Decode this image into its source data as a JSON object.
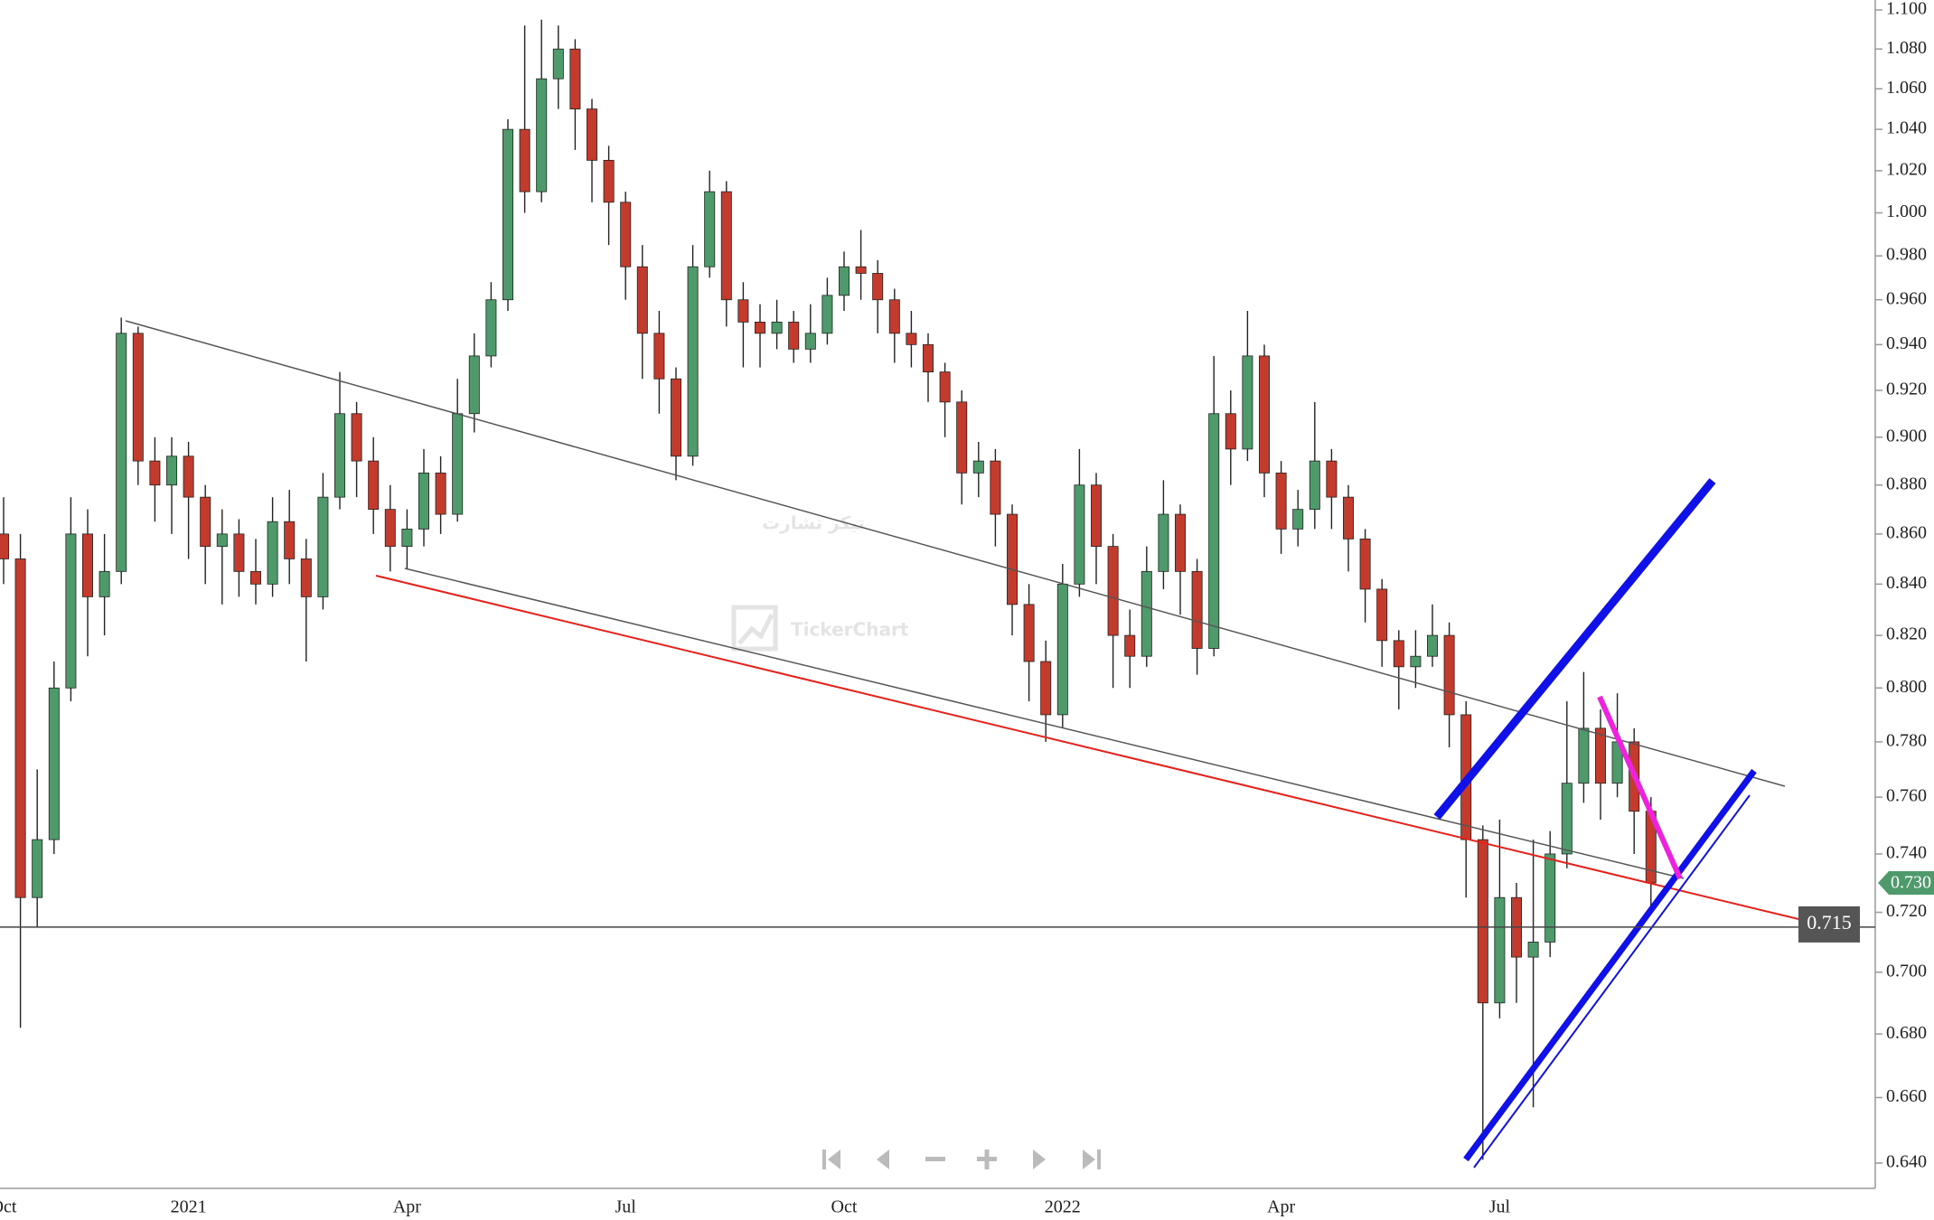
{
  "chart_data": {
    "type": "candlestick",
    "log": true,
    "up_color": "#4e9a6b",
    "down_color": "#c23b2c",
    "categories": [
      "Oct",
      null,
      null,
      null,
      null,
      null,
      null,
      null,
      null,
      null,
      null,
      "2021",
      null,
      null,
      null,
      null,
      null,
      null,
      null,
      null,
      null,
      null,
      null,
      null,
      "Apr",
      null,
      null,
      null,
      null,
      null,
      null,
      null,
      null,
      null,
      null,
      null,
      null,
      "Jul",
      null,
      null,
      null,
      null,
      null,
      null,
      null,
      null,
      null,
      null,
      null,
      null,
      "Oct",
      null,
      null,
      null,
      null,
      null,
      null,
      null,
      null,
      null,
      null,
      null,
      null,
      "2022",
      null,
      null,
      null,
      null,
      null,
      null,
      null,
      null,
      null,
      null,
      null,
      null,
      "Apr",
      null,
      null,
      null,
      null,
      null,
      null,
      null,
      null,
      null,
      null,
      null,
      null,
      "Jul",
      null,
      null,
      null,
      null,
      null,
      null,
      null,
      null,
      null
    ],
    "open": [
      0.86,
      0.85,
      0.725,
      0.745,
      0.8,
      0.86,
      0.835,
      0.845,
      0.945,
      0.89,
      0.88,
      0.892,
      0.875,
      0.855,
      0.86,
      0.845,
      0.84,
      0.865,
      0.85,
      0.835,
      0.875,
      0.91,
      0.89,
      0.87,
      0.855,
      0.862,
      0.885,
      0.868,
      0.91,
      0.935,
      0.96,
      1.04,
      1.01,
      1.065,
      1.08,
      1.05,
      1.025,
      1.005,
      0.975,
      0.945,
      0.925,
      0.892,
      0.975,
      1.01,
      0.96,
      0.95,
      0.945,
      0.95,
      0.938,
      0.945,
      0.962,
      0.975,
      0.972,
      0.96,
      0.945,
      0.94,
      0.928,
      0.915,
      0.885,
      0.89,
      0.868,
      0.832,
      0.81,
      0.79,
      0.84,
      0.88,
      0.855,
      0.82,
      0.812,
      0.845,
      0.868,
      0.845,
      0.815,
      0.91,
      0.895,
      0.935,
      0.885,
      0.862,
      0.87,
      0.89,
      0.875,
      0.858,
      0.838,
      0.818,
      0.808,
      0.812,
      0.82,
      0.79,
      0.745,
      0.69,
      0.725,
      0.705,
      0.71,
      0.74,
      0.765,
      0.785,
      0.765,
      0.78,
      0.755
    ],
    "high": [
      0.875,
      0.86,
      0.77,
      0.81,
      0.875,
      0.87,
      0.86,
      0.952,
      0.948,
      0.9,
      0.9,
      0.898,
      0.88,
      0.87,
      0.866,
      0.858,
      0.875,
      0.878,
      0.858,
      0.885,
      0.928,
      0.915,
      0.9,
      0.88,
      0.87,
      0.895,
      0.892,
      0.925,
      0.945,
      0.968,
      1.045,
      1.092,
      1.095,
      1.092,
      1.085,
      1.055,
      1.032,
      1.01,
      0.985,
      0.955,
      0.93,
      0.985,
      1.02,
      1.015,
      0.968,
      0.958,
      0.96,
      0.955,
      0.958,
      0.97,
      0.982,
      0.992,
      0.978,
      0.965,
      0.955,
      0.945,
      0.932,
      0.92,
      0.898,
      0.895,
      0.872,
      0.84,
      0.818,
      0.848,
      0.895,
      0.885,
      0.86,
      0.83,
      0.855,
      0.882,
      0.872,
      0.85,
      0.935,
      0.92,
      0.955,
      0.94,
      0.89,
      0.878,
      0.915,
      0.895,
      0.88,
      0.862,
      0.842,
      0.822,
      0.822,
      0.832,
      0.825,
      0.795,
      0.75,
      0.752,
      0.73,
      0.745,
      0.748,
      0.795,
      0.806,
      0.792,
      0.798,
      0.785,
      0.76
    ],
    "low": [
      0.84,
      0.682,
      0.715,
      0.74,
      0.795,
      0.812,
      0.82,
      0.84,
      0.88,
      0.865,
      0.86,
      0.85,
      0.84,
      0.832,
      0.835,
      0.832,
      0.835,
      0.84,
      0.81,
      0.83,
      0.87,
      0.875,
      0.86,
      0.845,
      0.846,
      0.855,
      0.86,
      0.865,
      0.902,
      0.93,
      0.955,
      1.0,
      1.005,
      1.05,
      1.03,
      1.005,
      0.985,
      0.96,
      0.925,
      0.91,
      0.882,
      0.888,
      0.97,
      0.948,
      0.93,
      0.93,
      0.938,
      0.932,
      0.932,
      0.94,
      0.955,
      0.96,
      0.945,
      0.932,
      0.93,
      0.915,
      0.9,
      0.872,
      0.875,
      0.855,
      0.82,
      0.795,
      0.78,
      0.785,
      0.835,
      0.84,
      0.8,
      0.8,
      0.808,
      0.838,
      0.828,
      0.805,
      0.812,
      0.88,
      0.89,
      0.875,
      0.852,
      0.855,
      0.862,
      0.862,
      0.845,
      0.825,
      0.808,
      0.792,
      0.8,
      0.808,
      0.778,
      0.725,
      0.641,
      0.685,
      0.69,
      0.657,
      0.705,
      0.735,
      0.758,
      0.752,
      0.76,
      0.74,
      0.72
    ],
    "close": [
      0.85,
      0.725,
      0.745,
      0.8,
      0.86,
      0.835,
      0.845,
      0.945,
      0.89,
      0.88,
      0.892,
      0.875,
      0.855,
      0.86,
      0.845,
      0.84,
      0.865,
      0.85,
      0.835,
      0.875,
      0.91,
      0.89,
      0.87,
      0.855,
      0.862,
      0.885,
      0.868,
      0.91,
      0.935,
      0.96,
      1.04,
      1.01,
      1.065,
      1.08,
      1.05,
      1.025,
      1.005,
      0.975,
      0.945,
      0.925,
      0.892,
      0.975,
      1.01,
      0.96,
      0.95,
      0.945,
      0.95,
      0.938,
      0.945,
      0.962,
      0.975,
      0.972,
      0.96,
      0.945,
      0.94,
      0.928,
      0.915,
      0.885,
      0.89,
      0.868,
      0.832,
      0.81,
      0.79,
      0.84,
      0.88,
      0.855,
      0.82,
      0.812,
      0.845,
      0.868,
      0.845,
      0.815,
      0.91,
      0.895,
      0.935,
      0.885,
      0.862,
      0.87,
      0.89,
      0.875,
      0.858,
      0.838,
      0.818,
      0.808,
      0.812,
      0.82,
      0.79,
      0.745,
      0.69,
      0.725,
      0.705,
      0.71,
      0.74,
      0.765,
      0.785,
      0.765,
      0.78,
      0.755,
      0.73
    ],
    "ylim": [
      0.64,
      1.1
    ],
    "yticks": [
      {
        "value": 0.64,
        "label": "0.640"
      },
      {
        "value": 0.66,
        "label": "0.660"
      },
      {
        "value": 0.68,
        "label": "0.680"
      },
      {
        "value": 0.7,
        "label": "0.700"
      },
      {
        "value": 0.72,
        "label": "0.720"
      },
      {
        "value": 0.74,
        "label": "0.740"
      },
      {
        "value": 0.76,
        "label": "0.760"
      },
      {
        "value": 0.78,
        "label": "0.780"
      },
      {
        "value": 0.8,
        "label": "0.800"
      },
      {
        "value": 0.82,
        "label": "0.820"
      },
      {
        "value": 0.84,
        "label": "0.840"
      },
      {
        "value": 0.86,
        "label": "0.860"
      },
      {
        "value": 0.88,
        "label": "0.880"
      },
      {
        "value": 0.9,
        "label": "0.900"
      },
      {
        "value": 0.92,
        "label": "0.920"
      },
      {
        "value": 0.94,
        "label": "0.940"
      },
      {
        "value": 0.96,
        "label": "0.960"
      },
      {
        "value": 0.98,
        "label": "0.980"
      },
      {
        "value": 1.0,
        "label": "1.000"
      },
      {
        "value": 1.02,
        "label": "1.020"
      },
      {
        "value": 1.04,
        "label": "1.040"
      },
      {
        "value": 1.06,
        "label": "1.060"
      },
      {
        "value": 1.08,
        "label": "1.080"
      },
      {
        "value": 1.1,
        "label": "1.100"
      }
    ],
    "horizontal_line": {
      "value": 0.715,
      "label": "0.715"
    },
    "last_price": {
      "value": 0.73,
      "label": "0.730"
    },
    "watermark": {
      "latin": "TickerChart",
      "arabic": "تيكر تشارت"
    }
  }
}
